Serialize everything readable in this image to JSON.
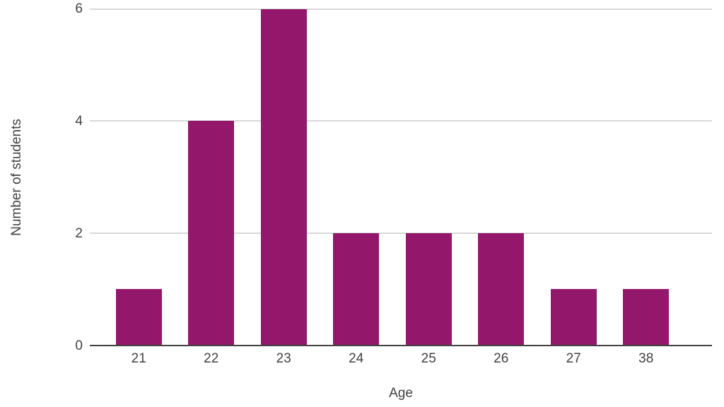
{
  "chart_data": {
    "type": "bar",
    "categories": [
      "21",
      "22",
      "23",
      "24",
      "25",
      "26",
      "27",
      "38"
    ],
    "values": [
      1,
      4,
      6,
      2,
      2,
      2,
      1,
      1
    ],
    "title": "",
    "xlabel": "Age",
    "ylabel": "Number of students",
    "ylim": [
      0,
      6
    ],
    "yticks": [
      0,
      2,
      4,
      6
    ],
    "grid": true,
    "legend_position": "none"
  },
  "colors": {
    "bar": "#93186B",
    "gridline": "#d9d9d9",
    "axis_line": "#424242",
    "text": "#424242",
    "background": "#ffffff"
  }
}
